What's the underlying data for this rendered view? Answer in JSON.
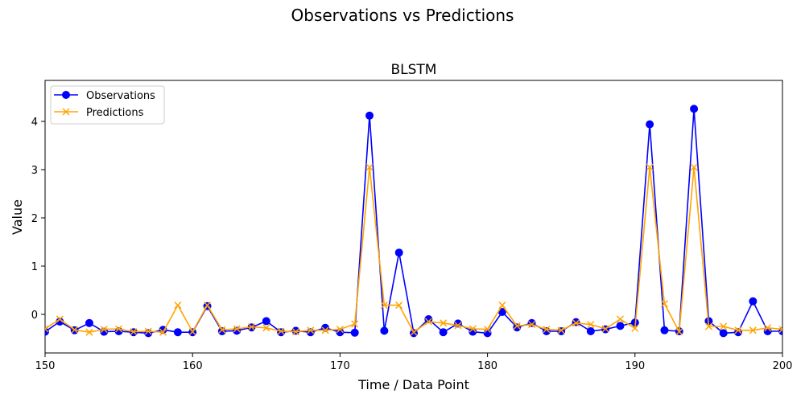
{
  "figure": {
    "suptitle": "Observations vs Predictions"
  },
  "chart_data": {
    "type": "line",
    "title": "BLSTM",
    "xlabel": "Time / Data Point",
    "ylabel": "Value",
    "xlim": [
      150,
      200
    ],
    "ylim": [
      -0.8,
      4.85
    ],
    "xticks": [
      150,
      160,
      170,
      180,
      190,
      200
    ],
    "yticks": [
      0,
      1,
      2,
      3,
      4
    ],
    "grid": false,
    "legend_position": "top-left",
    "x": [
      150,
      151,
      152,
      153,
      154,
      155,
      156,
      157,
      158,
      159,
      160,
      161,
      162,
      163,
      164,
      165,
      166,
      167,
      168,
      169,
      170,
      171,
      172,
      173,
      174,
      175,
      176,
      177,
      178,
      179,
      180,
      181,
      182,
      183,
      184,
      185,
      186,
      187,
      188,
      189,
      190,
      191,
      192,
      193,
      194,
      195,
      196,
      197,
      198,
      199,
      200
    ],
    "series": [
      {
        "name": "Observations",
        "color": "#0000ff",
        "marker": "circle",
        "values": [
          -0.36,
          -0.15,
          -0.33,
          -0.18,
          -0.36,
          -0.35,
          -0.37,
          -0.39,
          -0.32,
          -0.37,
          -0.37,
          0.17,
          -0.35,
          -0.34,
          -0.27,
          -0.14,
          -0.37,
          -0.34,
          -0.37,
          -0.28,
          -0.37,
          -0.38,
          4.12,
          -0.34,
          1.28,
          -0.39,
          -0.1,
          -0.37,
          -0.19,
          -0.36,
          -0.39,
          0.05,
          -0.27,
          -0.18,
          -0.35,
          -0.35,
          -0.16,
          -0.35,
          -0.31,
          -0.24,
          -0.17,
          3.94,
          -0.33,
          -0.35,
          4.26,
          -0.14,
          -0.39,
          -0.37,
          0.27,
          -0.35,
          -0.35
        ]
      },
      {
        "name": "Predictions",
        "color": "#ffa500",
        "marker": "x",
        "values": [
          -0.3,
          -0.1,
          -0.32,
          -0.37,
          -0.31,
          -0.3,
          -0.36,
          -0.35,
          -0.37,
          0.19,
          -0.36,
          0.19,
          -0.32,
          -0.3,
          -0.26,
          -0.28,
          -0.35,
          -0.36,
          -0.33,
          -0.33,
          -0.31,
          -0.2,
          3.05,
          0.19,
          0.19,
          -0.37,
          -0.15,
          -0.18,
          -0.23,
          -0.3,
          -0.31,
          0.19,
          -0.24,
          -0.21,
          -0.31,
          -0.33,
          -0.18,
          -0.21,
          -0.3,
          -0.1,
          -0.29,
          3.05,
          0.22,
          -0.36,
          3.05,
          -0.25,
          -0.25,
          -0.33,
          -0.33,
          -0.28,
          -0.31
        ]
      }
    ]
  }
}
